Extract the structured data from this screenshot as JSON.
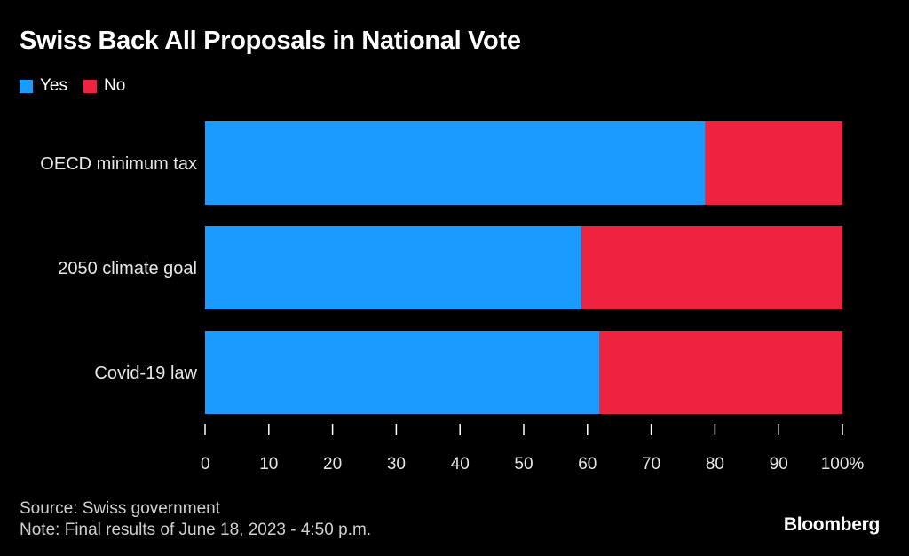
{
  "colors": {
    "yes": "#1b9bff",
    "no": "#ef2340",
    "background": "#000000",
    "text": "#ffffff"
  },
  "legend": {
    "yes_label": "Yes",
    "no_label": "No"
  },
  "footer": {
    "source": "Source: Swiss government",
    "note": "Note: Final results of June 18, 2023 - 4:50 p.m."
  },
  "brand": "Bloomberg",
  "chart_data": {
    "type": "bar",
    "orientation": "horizontal",
    "stacked": true,
    "title": "Swiss Back All Proposals in National Vote",
    "categories": [
      "OECD minimum tax",
      "2050 climate goal",
      "Covid-19 law"
    ],
    "series": [
      {
        "name": "Yes",
        "values": [
          78.5,
          59.1,
          61.9
        ]
      },
      {
        "name": "No",
        "values": [
          21.5,
          40.9,
          38.1
        ]
      }
    ],
    "xlim": [
      0,
      100
    ],
    "ticks": [
      0,
      10,
      20,
      30,
      40,
      50,
      60,
      70,
      80,
      90,
      100
    ],
    "tick_labels": [
      "0",
      "10",
      "20",
      "30",
      "40",
      "50",
      "60",
      "70",
      "80",
      "90",
      "100%"
    ],
    "legend_position": "top-left",
    "grid": false
  }
}
